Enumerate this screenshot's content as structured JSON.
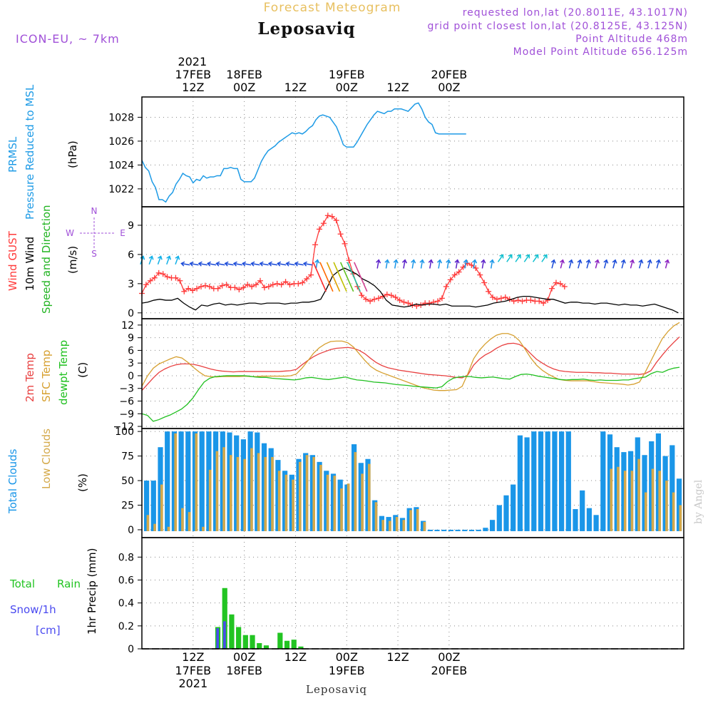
{
  "header": {
    "product": "Forecast Meteogram",
    "location": "Leposaviq",
    "model": "ICON-EU, ~ 7km",
    "requested": "requested lon,lat (20.8011E, 43.1017N)",
    "closest": "grid point closest lon,lat (20.8125E, 43.125N)",
    "point_alt": "Point Altitude 468m",
    "model_alt": "Model Point Altitude 656.125m",
    "footer_location": "Leposaviq",
    "credit": "by Angel"
  },
  "colors": {
    "pressure": "#1e9be6",
    "gust": "#ff3a3a",
    "wind": "#000000",
    "dir": "#22b422",
    "temp": "#e84040",
    "sfc": "#d6a030",
    "dewpt": "#20c020",
    "total_cloud": "#1a96e8",
    "low_cloud": "#d4a94a",
    "rain": "#22c422",
    "snow": "#4a4af0",
    "meta": "#a050d8",
    "title": "#e8c060"
  },
  "chart_data": [
    {
      "type": "line",
      "name": "pressure",
      "ylabel_lines": [
        "PRMSL",
        "Pressure Reduced to MSL",
        "(hPa)"
      ],
      "ylim": [
        1020.5,
        1029.7
      ],
      "yticks": [
        1022,
        1024,
        1026,
        1028
      ],
      "ytick_labels": [
        "1022",
        "1024",
        "1026",
        "1028"
      ],
      "x_hours": [
        0,
        1,
        2,
        3,
        4,
        5,
        6,
        7,
        8,
        9,
        10,
        11,
        12,
        13,
        14,
        15,
        16,
        17,
        18,
        19,
        20,
        21,
        22,
        23,
        24,
        25,
        26,
        27,
        28,
        29,
        30,
        31,
        32,
        33,
        34,
        35,
        36,
        37,
        38,
        39,
        40,
        41,
        42,
        43,
        44,
        45,
        46,
        47,
        48,
        49,
        50,
        51,
        52,
        53,
        54,
        55,
        56,
        57,
        58,
        59,
        60,
        61,
        62,
        63,
        64,
        65,
        66,
        67,
        68,
        69,
        70,
        71,
        72,
        73,
        74,
        75,
        76,
        77,
        78,
        79,
        80,
        81,
        82,
        83,
        84,
        85,
        86,
        87,
        88,
        89,
        90,
        91,
        92,
        93,
        94,
        95,
        96,
        97,
        98,
        99,
        100,
        101,
        102,
        103,
        104,
        105,
        106,
        107,
        108,
        109,
        110,
        111,
        112,
        113,
        114,
        115,
        116,
        117,
        118,
        119,
        120,
        121,
        122,
        123,
        124,
        125,
        126,
        127
      ],
      "values": [
        1024.4,
        1023.8,
        1023.5,
        1022.6,
        1022.1,
        1021.1,
        1021.1,
        1020.9,
        1021.4,
        1021.7,
        1022.4,
        1022.8,
        1023.3,
        1023.1,
        1023.0,
        1022.5,
        1022.8,
        1022.7,
        1023.1,
        1022.9,
        1023.0,
        1023.0,
        1023.1,
        1023.1,
        1023.7,
        1023.7,
        1023.8,
        1023.7,
        1023.7,
        1022.8,
        1022.6,
        1022.6,
        1022.6,
        1022.9,
        1023.6,
        1024.3,
        1024.8,
        1025.2,
        1025.4,
        1025.6,
        1025.9,
        1026.1,
        1026.3,
        1026.5,
        1026.7,
        1026.6,
        1026.7,
        1026.6,
        1026.8,
        1027.1,
        1027.3,
        1027.8,
        1028.1,
        1028.2,
        1028.1,
        1028.0,
        1027.6,
        1027.2,
        1026.5,
        1025.7,
        1025.5,
        1025.5,
        1025.5,
        1025.9,
        1026.4,
        1026.9,
        1027.4,
        1027.8,
        1028.2,
        1028.5,
        1028.4,
        1028.3,
        1028.5,
        1028.5,
        1028.7,
        1028.7,
        1028.7,
        1028.6,
        1028.5,
        1028.8,
        1029.1,
        1029.2,
        1028.7,
        1028.0,
        1027.6,
        1027.4,
        1026.7,
        1026.6,
        1026.6,
        1026.6,
        1026.6,
        1026.6,
        1026.6,
        1026.6,
        1026.6,
        1026.6,
        1026.6,
        1026.6,
        1026.6,
        1026.6,
        1026.6,
        1026.6,
        1026.6,
        1026.6,
        1026.6,
        1026.6,
        1026.6,
        1026.6,
        1026.6,
        1026.6,
        1026.6,
        1026.6,
        1026.6,
        1026.6,
        1026.6,
        1026.6,
        1026.6,
        1026.6,
        1026.6,
        1026.6,
        1026.6,
        1026.6,
        1026.6,
        1026.6,
        1026.6,
        1026.6,
        1026.6,
        1026.6
      ]
    },
    {
      "type": "line",
      "name": "wind",
      "ylabel_lines": [
        "Wind GUST",
        "10m Wind",
        "Speed and Direction",
        "(m/s)"
      ],
      "compass": [
        "N",
        "W",
        "E",
        "S"
      ],
      "ylim": [
        -0.6,
        10.9
      ],
      "yticks": [
        0,
        3,
        6,
        9
      ],
      "ytick_labels": [
        "0",
        "3",
        "6",
        "9"
      ],
      "series": [
        {
          "name": "Wind GUST",
          "values": [
            2.0,
            2.9,
            3.3,
            3.6,
            4.1,
            4.0,
            3.7,
            3.6,
            3.6,
            3.3,
            2.2,
            2.5,
            2.3,
            2.5,
            2.7,
            2.8,
            2.7,
            2.5,
            2.5,
            2.8,
            2.9,
            2.6,
            2.6,
            2.4,
            2.6,
            2.9,
            2.7,
            2.9,
            3.3,
            2.6,
            2.7,
            2.9,
            3.0,
            2.9,
            3.2,
            2.9,
            3.0,
            3.0,
            3.1,
            3.5,
            3.9,
            7.0,
            8.6,
            9.2,
            10.0,
            9.9,
            9.5,
            8.1,
            7.1,
            5.4,
            4.0,
            2.7,
            1.8,
            1.4,
            1.2,
            1.4,
            1.5,
            1.7,
            1.9,
            1.8,
            1.6,
            1.3,
            1.1,
            1.0,
            0.8,
            0.7,
            0.8,
            1.0,
            1.0,
            1.1,
            1.2,
            1.5,
            2.7,
            3.4,
            3.9,
            4.2,
            4.7,
            5.1,
            4.9,
            4.6,
            3.9,
            3.1,
            2.2,
            1.6,
            1.4,
            1.5,
            1.6,
            1.4,
            1.2,
            1.3,
            1.2,
            1.3,
            1.3,
            1.2,
            1.2,
            1.0,
            1.3,
            2.5,
            3.1,
            3.0,
            2.7
          ]
        },
        {
          "name": "10m Wind",
          "values": [
            1.0,
            1.1,
            1.3,
            1.4,
            1.3,
            1.3,
            1.5,
            1.0,
            0.6,
            0.3,
            0.8,
            0.7,
            0.9,
            1.0,
            0.8,
            0.9,
            0.8,
            0.9,
            1.0,
            1.0,
            0.9,
            1.0,
            1.0,
            1.0,
            0.9,
            1.0,
            1.0,
            1.1,
            1.1,
            1.2,
            1.4,
            2.5,
            3.8,
            4.3,
            4.6,
            4.3,
            4.0,
            3.5,
            3.2,
            2.8,
            2.2,
            1.3,
            0.8,
            0.7,
            0.6,
            0.7,
            0.9,
            0.8,
            0.9,
            0.9,
            0.8,
            0.9,
            0.7,
            0.7,
            0.7,
            0.7,
            0.6,
            0.7,
            0.8,
            1.0,
            1.1,
            1.2,
            1.4,
            1.6,
            1.7,
            1.7,
            1.6,
            1.5,
            1.4,
            1.4,
            1.2,
            1.0,
            1.1,
            1.1,
            1.0,
            1.0,
            0.9,
            1.0,
            1.0,
            0.9,
            0.8,
            0.9,
            0.8,
            0.8,
            0.7,
            0.8,
            0.9,
            0.7,
            0.5,
            0.3,
            0.0
          ]
        },
        {
          "name": "Speed and Direction",
          "values": [
            0
          ]
        }
      ]
    },
    {
      "type": "line",
      "name": "temperature",
      "ylabel_lines": [
        "2m Temp",
        "SFC Temp",
        "dewpt Temp",
        "(C)"
      ],
      "ylim": [
        -12.5,
        13.5
      ],
      "yticks": [
        -12,
        -9,
        -6,
        -3,
        0,
        3,
        6,
        9,
        12
      ],
      "ytick_labels": [
        "−12",
        "−9",
        "−6",
        "−3",
        "0",
        "3",
        "6",
        "9",
        "12"
      ],
      "series": [
        {
          "name": "2m Temp",
          "values": [
            -3.5,
            -2.0,
            -0.5,
            0.8,
            1.6,
            2.2,
            2.6,
            2.8,
            2.8,
            2.7,
            2.4,
            2.0,
            1.6,
            1.3,
            1.1,
            1.0,
            0.9,
            1.0,
            1.0,
            1.0,
            1.0,
            1.0,
            1.0,
            1.0,
            1.0,
            1.1,
            1.2,
            1.5,
            2.6,
            3.6,
            4.5,
            5.2,
            5.7,
            6.2,
            6.5,
            6.6,
            6.7,
            6.5,
            6.0,
            5.2,
            4.1,
            3.1,
            2.4,
            1.9,
            1.6,
            1.3,
            1.1,
            0.9,
            0.7,
            0.5,
            0.3,
            0.2,
            0.1,
            0.0,
            -0.2,
            -0.4,
            -0.5,
            0.2,
            2.5,
            3.9,
            4.9,
            5.6,
            6.5,
            7.2,
            7.6,
            7.7,
            7.4,
            6.6,
            5.2,
            3.9,
            3.0,
            2.2,
            1.6,
            1.2,
            1.0,
            0.9,
            0.8,
            0.8,
            0.8,
            0.7,
            0.7,
            0.6,
            0.6,
            0.5,
            0.4,
            0.4,
            0.4,
            0.3,
            0.5,
            1.2,
            3.2,
            4.9,
            6.5,
            7.9,
            9.2
          ]
        },
        {
          "name": "SFC Temp",
          "values": [
            -2.5,
            0.0,
            1.8,
            2.8,
            3.4,
            4.0,
            4.5,
            4.2,
            3.2,
            2.0,
            0.9,
            0.0,
            -0.2,
            -0.3,
            -0.2,
            -0.2,
            -0.2,
            -0.2,
            -0.1,
            -0.2,
            -0.2,
            -0.1,
            -0.1,
            -0.1,
            -0.1,
            -0.1,
            0.0,
            0.4,
            1.8,
            3.5,
            5.3,
            6.6,
            7.5,
            8.1,
            8.2,
            8.2,
            7.8,
            6.8,
            5.2,
            3.6,
            2.2,
            1.3,
            0.7,
            0.2,
            -0.3,
            -0.8,
            -1.3,
            -1.8,
            -2.3,
            -2.8,
            -3.1,
            -3.4,
            -3.5,
            -3.5,
            -3.4,
            -3.3,
            -2.5,
            0.5,
            4.0,
            6.0,
            7.5,
            8.7,
            9.6,
            10.0,
            10.0,
            9.5,
            8.3,
            6.3,
            4.2,
            2.5,
            1.3,
            0.4,
            -0.3,
            -0.9,
            -1.1,
            -1.2,
            -1.2,
            -1.2,
            -1.2,
            -1.4,
            -1.6,
            -1.7,
            -1.8,
            -1.9,
            -2.0,
            -2.2,
            -2.0,
            -1.5,
            0.8,
            3.5,
            6.2,
            8.8,
            10.5,
            11.8,
            12.6
          ]
        },
        {
          "name": "dewpt Temp",
          "values": [
            -9.0,
            -9.4,
            -10.8,
            -10.4,
            -9.8,
            -9.3,
            -8.6,
            -7.9,
            -6.8,
            -5.3,
            -3.3,
            -1.5,
            -0.6,
            -0.2,
            -0.1,
            0.0,
            0.0,
            0.0,
            0.0,
            -0.1,
            -0.3,
            -0.4,
            -0.4,
            -0.6,
            -0.7,
            -0.8,
            -0.9,
            -1.0,
            -0.8,
            -0.5,
            -0.4,
            -0.6,
            -0.8,
            -0.9,
            -0.7,
            -0.5,
            -0.3,
            -0.7,
            -1.0,
            -1.1,
            -1.3,
            -1.5,
            -1.6,
            -1.7,
            -1.9,
            -2.1,
            -2.2,
            -2.3,
            -2.5,
            -2.6,
            -2.7,
            -2.8,
            -2.9,
            -2.6,
            -1.4,
            -0.6,
            -0.3,
            -0.2,
            -0.2,
            -0.4,
            -0.5,
            -0.4,
            -0.3,
            -0.5,
            -0.7,
            -0.8,
            -0.2,
            0.3,
            0.4,
            0.2,
            -0.1,
            -0.3,
            -0.5,
            -0.7,
            -0.9,
            -1.0,
            -0.9,
            -0.9,
            -0.8,
            -1.0,
            -1.1,
            -1.0,
            -1.1,
            -1.1,
            -1.1,
            -1.0,
            -1.0,
            -0.7,
            -0.5,
            -0.3,
            0.5,
            1.0,
            0.8,
            1.4,
            1.8,
            2.0
          ]
        }
      ]
    },
    {
      "type": "bar",
      "name": "clouds",
      "ylabel_lines": [
        "Total Clouds",
        "Low Clouds",
        "(%)"
      ],
      "ylim": [
        -8,
        103
      ],
      "yticks": [
        0,
        25,
        50,
        75,
        100
      ],
      "ytick_labels": [
        "0",
        "25",
        "50",
        "75",
        "100"
      ],
      "series": [
        {
          "name": "Total Clouds",
          "values": [
            50,
            50,
            84,
            100,
            100,
            100,
            100,
            100,
            100,
            100,
            100,
            100,
            99,
            96,
            92,
            100,
            99,
            88,
            83,
            71,
            60,
            56,
            72,
            78,
            76,
            69,
            60,
            57,
            51,
            46,
            87,
            68,
            72,
            30,
            14,
            13,
            15,
            12,
            22,
            23,
            9,
            0,
            0,
            0,
            0,
            0,
            0,
            0,
            0,
            2,
            10,
            25,
            35,
            46,
            96,
            94,
            100,
            100,
            100,
            100,
            100,
            100,
            21,
            40,
            22,
            15,
            100,
            97,
            84,
            79,
            80,
            94,
            76,
            90,
            98,
            75,
            86,
            52,
            32,
            35,
            45,
            84
          ]
        },
        {
          "name": "Low Clouds",
          "values": [
            15,
            6,
            46,
            3,
            98,
            22,
            18,
            98,
            3,
            61,
            80,
            84,
            76,
            74,
            72,
            83,
            78,
            74,
            74,
            60,
            56,
            51,
            69,
            76,
            74,
            66,
            56,
            55,
            42,
            47,
            79,
            57,
            67,
            28,
            10,
            9,
            13,
            10,
            20,
            21,
            8,
            0,
            0,
            0,
            0,
            0,
            0,
            0,
            0,
            0,
            0,
            0,
            0,
            0,
            0,
            0,
            0,
            0,
            0,
            0,
            0,
            0,
            0,
            0,
            0,
            0,
            0,
            62,
            64,
            60,
            60,
            72,
            38,
            62,
            60,
            50,
            38,
            25,
            13,
            20,
            10,
            70
          ]
        }
      ]
    },
    {
      "type": "bar",
      "name": "precipitation",
      "ylabel_lines": [
        "Total Rain",
        "Snow/1h",
        "[cm]",
        "1hr Precip (mm)"
      ],
      "ylim": [
        0,
        0.97
      ],
      "yticks": [
        0,
        0.2,
        0.4,
        0.6,
        0.8
      ],
      "ytick_labels": [
        "0",
        "0.2",
        "0.4",
        "0.6",
        "0.8"
      ],
      "series": [
        {
          "name": "Total Rain",
          "values": [
            0.19,
            0.53,
            0.3,
            0.19,
            0.12,
            0.12,
            0.05,
            0.03,
            0.0,
            0.14,
            0.07,
            0.08,
            0.02
          ]
        },
        {
          "name": "Snow/1h",
          "values": [
            0.18,
            0.24,
            0,
            0,
            0,
            0,
            0,
            0,
            0,
            0,
            0,
            0,
            0
          ]
        }
      ]
    }
  ],
  "time_axis": {
    "top_year": "2021",
    "top_labels": [
      {
        "line1": "17FEB",
        "line2": "12Z",
        "hour": 12
      },
      {
        "line1": "18FEB",
        "line2": "00Z",
        "hour": 24
      },
      {
        "line1": "",
        "line2": "12Z",
        "hour": 36
      },
      {
        "line1": "19FEB",
        "line2": "00Z",
        "hour": 48
      },
      {
        "line1": "",
        "line2": "12Z",
        "hour": 60
      },
      {
        "line1": "20FEB",
        "line2": "00Z",
        "hour": 72
      }
    ],
    "bottom_year": "2021",
    "bottom_labels": [
      {
        "line1": "12Z",
        "line2": "17FEB",
        "hour": 12
      },
      {
        "line1": "00Z",
        "line2": "18FEB",
        "hour": 24
      },
      {
        "line1": "12Z",
        "line2": "",
        "hour": 36
      },
      {
        "line1": "00Z",
        "line2": "19FEB",
        "hour": 48
      },
      {
        "line1": "12Z",
        "line2": "",
        "hour": 60
      },
      {
        "line1": "00Z",
        "line2": "20FEB",
        "hour": 72
      }
    ]
  }
}
